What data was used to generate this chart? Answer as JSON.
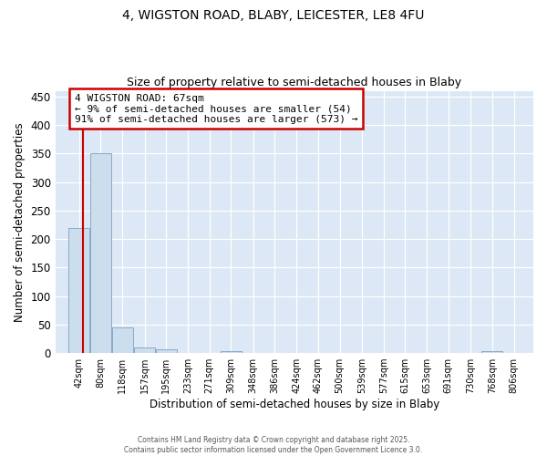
{
  "title_line1": "4, WIGSTON ROAD, BLABY, LEICESTER, LE8 4FU",
  "title_line2": "Size of property relative to semi-detached houses in Blaby",
  "xlabel": "Distribution of semi-detached houses by size in Blaby",
  "ylabel": "Number of semi-detached properties",
  "property_label": "4 WIGSTON ROAD: 67sqm",
  "pct_smaller": 9,
  "count_smaller": 54,
  "pct_larger": 91,
  "count_larger": 573,
  "bin_labels": [
    "42sqm",
    "80sqm",
    "118sqm",
    "157sqm",
    "195sqm",
    "233sqm",
    "271sqm",
    "309sqm",
    "348sqm",
    "386sqm",
    "424sqm",
    "462sqm",
    "500sqm",
    "539sqm",
    "577sqm",
    "615sqm",
    "653sqm",
    "691sqm",
    "730sqm",
    "768sqm",
    "806sqm"
  ],
  "bin_edges": [
    42,
    80,
    118,
    157,
    195,
    233,
    271,
    309,
    348,
    386,
    424,
    462,
    500,
    539,
    577,
    615,
    653,
    691,
    730,
    768,
    806
  ],
  "bar_heights": [
    220,
    350,
    45,
    9,
    6,
    0,
    0,
    4,
    0,
    0,
    0,
    0,
    0,
    0,
    0,
    0,
    0,
    0,
    0,
    3
  ],
  "bar_color": "#ccdded",
  "bar_edgecolor": "#88aac8",
  "vline_color": "#cc0000",
  "vline_x": 67,
  "annotation_box_color": "#cc0000",
  "ylim": [
    0,
    460
  ],
  "background_color": "#dce8f5",
  "grid_color": "#ffffff",
  "footer_text": "Contains HM Land Registry data © Crown copyright and database right 2025.\nContains public sector information licensed under the Open Government Licence 3.0."
}
